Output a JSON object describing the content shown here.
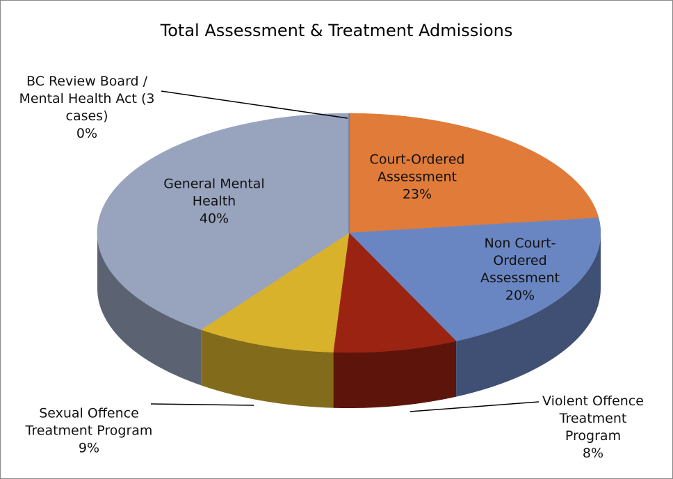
{
  "chart_data": {
    "type": "pie3d",
    "title": "Total Assessment & Treatment Admissions",
    "categories": [
      "Court-Ordered Assessment",
      "Non Court-Ordered Assessment",
      "Violent Offence Treatment Program",
      "Sexual Offence Treatment Program",
      "General Mental Health",
      "BC Review Board /  Mental Health Act (3 cases)"
    ],
    "values": [
      23,
      20,
      8,
      9,
      40,
      0
    ],
    "value_labels": [
      "23%",
      "20%",
      "8%",
      "9%",
      "40%",
      "0%"
    ],
    "colors": [
      "#e07b39",
      "#6a86c2",
      "#9b2312",
      "#d9b22c",
      "#98a3bd",
      "#4a5a7a"
    ]
  }
}
